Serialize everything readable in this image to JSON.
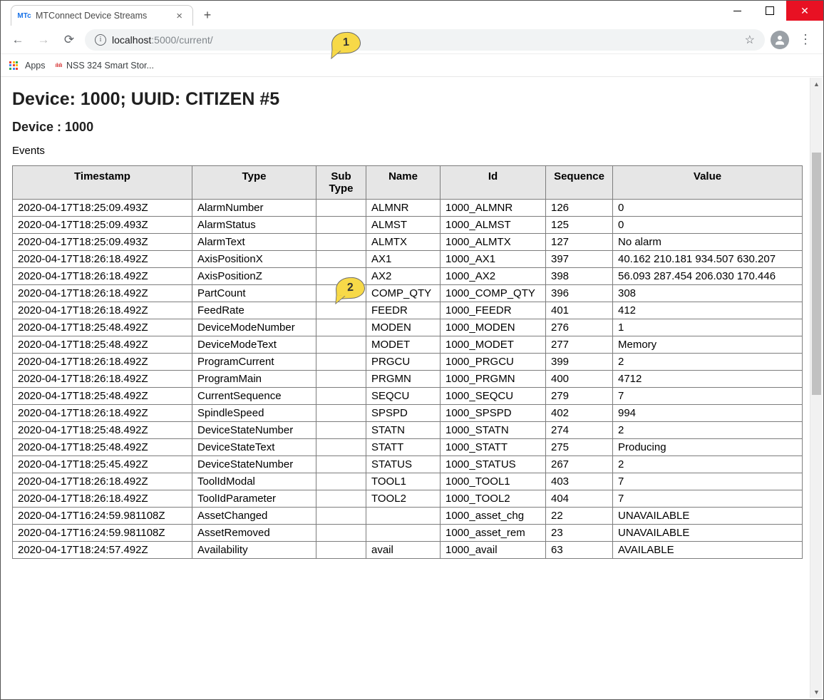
{
  "window": {
    "tab_title": "MTConnect Device Streams",
    "favicon_text": "MTc"
  },
  "omnibox": {
    "host": "localhost",
    "port_path": ":5000/current/"
  },
  "bookmarks": {
    "apps_label": "Apps",
    "nss_label": "NSS 324 Smart Stor..."
  },
  "page": {
    "main_title": "Device: 1000; UUID: CITIZEN #5",
    "sub_title": "Device : 1000",
    "section_label": "Events"
  },
  "callouts": {
    "c1": "1",
    "c2": "2"
  },
  "events_table": {
    "columns": [
      "Timestamp",
      "Type",
      "Sub Type",
      "Name",
      "Id",
      "Sequence",
      "Value"
    ],
    "rows": [
      [
        "2020-04-17T18:25:09.493Z",
        "AlarmNumber",
        "",
        "ALMNR",
        "1000_ALMNR",
        "126",
        "0"
      ],
      [
        "2020-04-17T18:25:09.493Z",
        "AlarmStatus",
        "",
        "ALMST",
        "1000_ALMST",
        "125",
        "0"
      ],
      [
        "2020-04-17T18:25:09.493Z",
        "AlarmText",
        "",
        "ALMTX",
        "1000_ALMTX",
        "127",
        "No alarm"
      ],
      [
        "2020-04-17T18:26:18.492Z",
        "AxisPositionX",
        "",
        "AX1",
        "1000_AX1",
        "397",
        "40.162 210.181 934.507 630.207"
      ],
      [
        "2020-04-17T18:26:18.492Z",
        "AxisPositionZ",
        "",
        "AX2",
        "1000_AX2",
        "398",
        "56.093 287.454 206.030 170.446"
      ],
      [
        "2020-04-17T18:26:18.492Z",
        "PartCount",
        "",
        "COMP_QTY",
        "1000_COMP_QTY",
        "396",
        "308"
      ],
      [
        "2020-04-17T18:26:18.492Z",
        "FeedRate",
        "",
        "FEEDR",
        "1000_FEEDR",
        "401",
        "412"
      ],
      [
        "2020-04-17T18:25:48.492Z",
        "DeviceModeNumber",
        "",
        "MODEN",
        "1000_MODEN",
        "276",
        "1"
      ],
      [
        "2020-04-17T18:25:48.492Z",
        "DeviceModeText",
        "",
        "MODET",
        "1000_MODET",
        "277",
        "Memory"
      ],
      [
        "2020-04-17T18:26:18.492Z",
        "ProgramCurrent",
        "",
        "PRGCU",
        "1000_PRGCU",
        "399",
        "2"
      ],
      [
        "2020-04-17T18:26:18.492Z",
        "ProgramMain",
        "",
        "PRGMN",
        "1000_PRGMN",
        "400",
        "4712"
      ],
      [
        "2020-04-17T18:25:48.492Z",
        "CurrentSequence",
        "",
        "SEQCU",
        "1000_SEQCU",
        "279",
        "7"
      ],
      [
        "2020-04-17T18:26:18.492Z",
        "SpindleSpeed",
        "",
        "SPSPD",
        "1000_SPSPD",
        "402",
        "994"
      ],
      [
        "2020-04-17T18:25:48.492Z",
        "DeviceStateNumber",
        "",
        "STATN",
        "1000_STATN",
        "274",
        "2"
      ],
      [
        "2020-04-17T18:25:48.492Z",
        "DeviceStateText",
        "",
        "STATT",
        "1000_STATT",
        "275",
        "Producing"
      ],
      [
        "2020-04-17T18:25:45.492Z",
        "DeviceStateNumber",
        "",
        "STATUS",
        "1000_STATUS",
        "267",
        "2"
      ],
      [
        "2020-04-17T18:26:18.492Z",
        "ToolIdModal",
        "",
        "TOOL1",
        "1000_TOOL1",
        "403",
        "7"
      ],
      [
        "2020-04-17T18:26:18.492Z",
        "ToolIdParameter",
        "",
        "TOOL2",
        "1000_TOOL2",
        "404",
        "7"
      ],
      [
        "2020-04-17T16:24:59.981108Z",
        "AssetChanged",
        "",
        "",
        "1000_asset_chg",
        "22",
        "UNAVAILABLE"
      ],
      [
        "2020-04-17T16:24:59.981108Z",
        "AssetRemoved",
        "",
        "",
        "1000_asset_rem",
        "23",
        "UNAVAILABLE"
      ],
      [
        "2020-04-17T18:24:57.492Z",
        "Availability",
        "",
        "avail",
        "1000_avail",
        "63",
        "AVAILABLE"
      ]
    ]
  }
}
